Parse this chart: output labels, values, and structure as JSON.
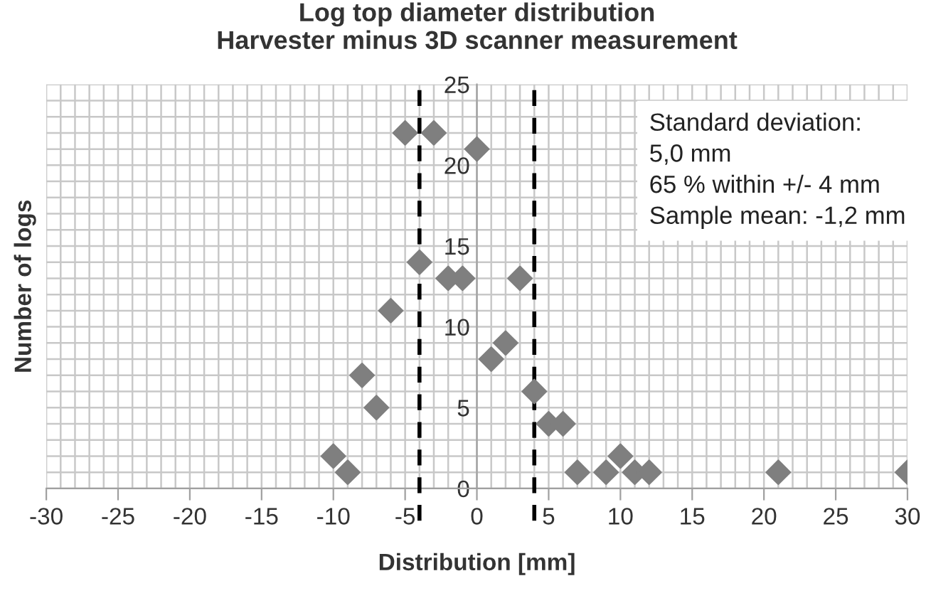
{
  "chart_data": {
    "type": "scatter",
    "title": "Log top diameter distribution\nHarvester minus 3D scanner measurement",
    "xlabel": "Distribution [mm]",
    "ylabel": "Number of logs",
    "x": [
      -10,
      -9,
      -8,
      -7,
      -6,
      -5,
      -4,
      -3,
      -2,
      -1,
      0,
      1,
      2,
      3,
      4,
      5,
      6,
      7,
      9,
      10,
      11,
      12,
      21,
      30
    ],
    "series": [
      {
        "color": "#7f7f7f",
        "values": [
          2,
          1,
          7,
          5,
          11,
          22,
          14,
          22,
          13,
          13,
          21,
          8,
          9,
          13,
          6,
          4,
          4,
          1,
          1,
          2,
          1,
          1,
          1,
          1
        ]
      }
    ],
    "marker": "diamond",
    "grid": true,
    "xlim": [
      -30,
      30
    ],
    "xticks": [
      -30,
      -25,
      -20,
      -15,
      -10,
      -5,
      0,
      5,
      10,
      15,
      20,
      25,
      30
    ],
    "ylim": [
      0,
      25
    ],
    "yticks": [
      0,
      5,
      10,
      15,
      20,
      25
    ],
    "ref_lines": [
      {
        "axis": "x",
        "value": -4,
        "color": "#000000",
        "line_style": "dashed"
      },
      {
        "axis": "x",
        "value": 4,
        "color": "#000000",
        "line_style": "dashed"
      }
    ],
    "annotations": [
      "Standard deviation:",
      "5,0 mm",
      "65 % within +/- 4 mm",
      "Sample mean: -1,2 mm"
    ]
  }
}
